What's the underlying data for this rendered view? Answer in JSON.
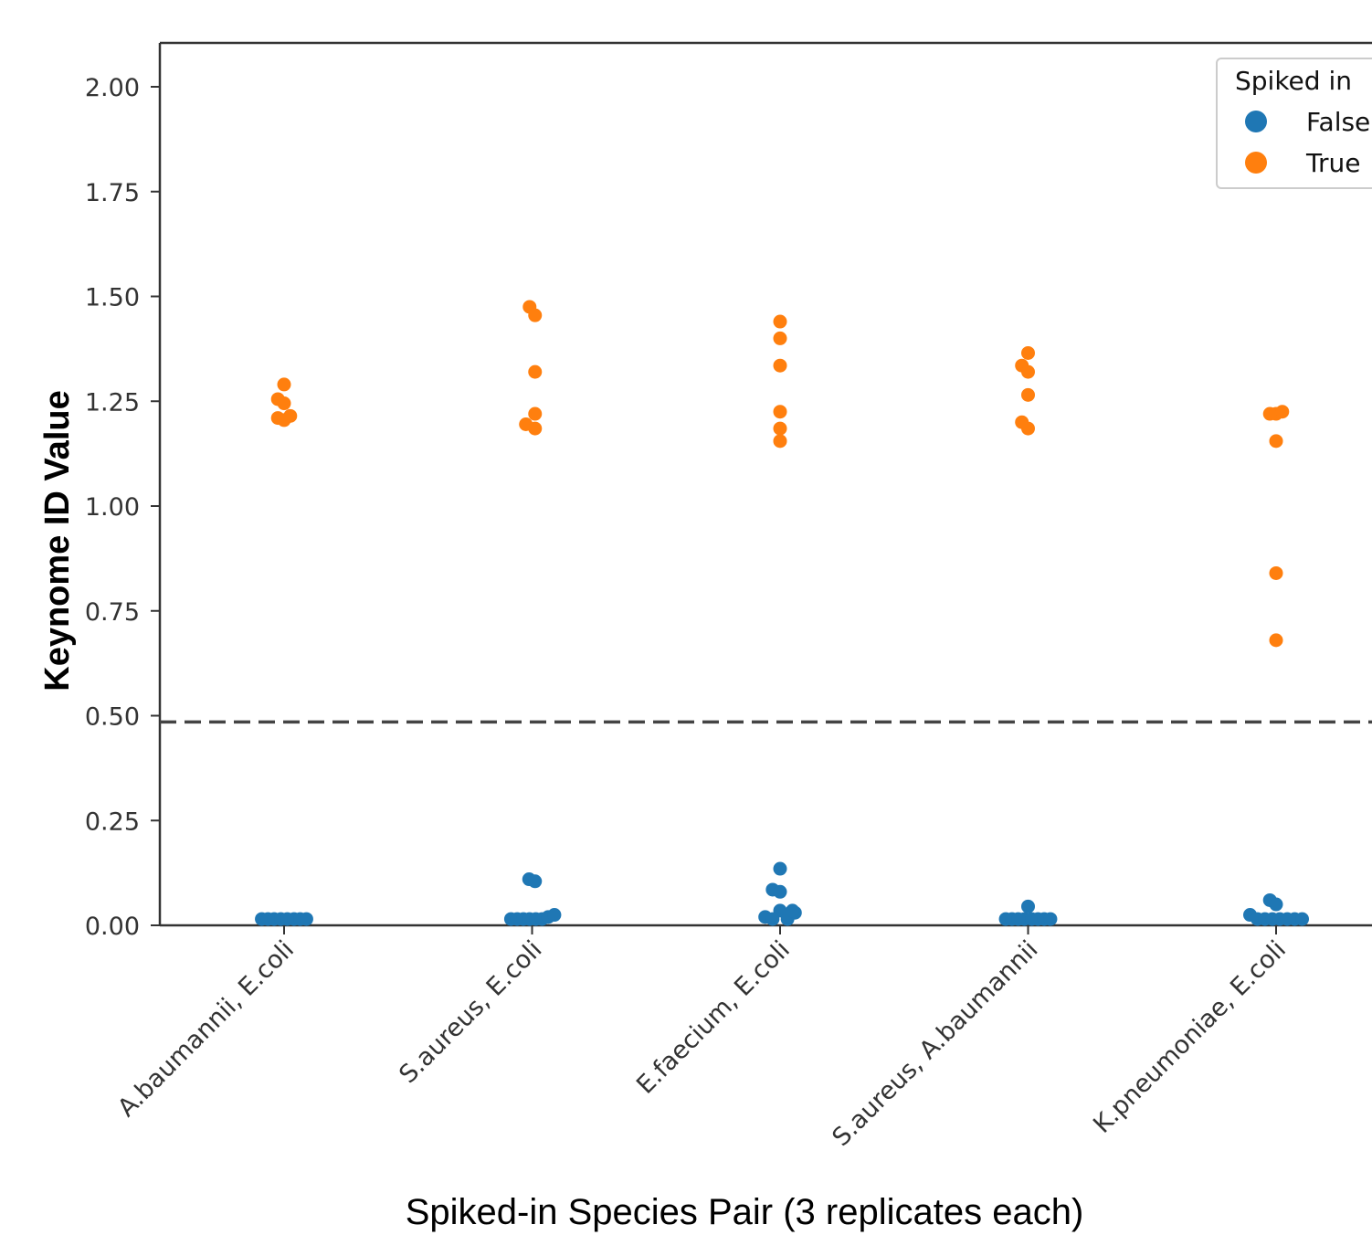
{
  "chart_data": {
    "type": "scatter",
    "subtype": "swarm",
    "title": "",
    "xlabel": "Spiked-in Species Pair (3 replicates each)",
    "ylabel": "Keynome ID Value",
    "categories": [
      "A.baumannii, E.coli",
      "S.aureus, E.coli",
      "E.faecium, E.coli",
      "S.aureus, A.baumannii",
      "K.pneumoniae, E.coli"
    ],
    "ylim": [
      0,
      2.1
    ],
    "yticks": [
      "0.00",
      "0.25",
      "0.50",
      "0.75",
      "1.00",
      "1.25",
      "1.50",
      "1.75",
      "2.00"
    ],
    "threshold": 0.485,
    "threshold_style": "dashed",
    "grid": false,
    "legend": {
      "title": "Spiked in",
      "placement": "top-right",
      "entries": [
        "False",
        "True"
      ]
    },
    "colors": {
      "False": "#1f77b4",
      "True": "#ff7f0e",
      "threshold": "#444444",
      "axes": "#333333"
    },
    "series": [
      {
        "name": "False",
        "points": [
          [
            [
              0.015,
              -0.09
            ],
            [
              0.015,
              -0.065
            ],
            [
              0.015,
              -0.04
            ],
            [
              0.015,
              -0.013
            ],
            [
              0.015,
              0.013
            ],
            [
              0.015,
              0.04
            ],
            [
              0.015,
              0.065
            ],
            [
              0.015,
              0.09
            ]
          ],
          [
            [
              0.11,
              -0.012
            ],
            [
              0.105,
              0.012
            ],
            [
              0.015,
              -0.085
            ],
            [
              0.015,
              -0.06
            ],
            [
              0.015,
              -0.035
            ],
            [
              0.015,
              -0.01
            ],
            [
              0.015,
              0.015
            ],
            [
              0.015,
              0.04
            ],
            [
              0.02,
              0.065
            ],
            [
              0.025,
              0.09
            ]
          ],
          [
            [
              0.135,
              0
            ],
            [
              0.085,
              -0.03
            ],
            [
              0.08,
              0
            ],
            [
              0.035,
              0
            ],
            [
              0.02,
              -0.06
            ],
            [
              0.015,
              -0.03
            ],
            [
              0.015,
              0.03
            ],
            [
              0.03,
              0.06
            ],
            [
              0.035,
              0.05
            ]
          ],
          [
            [
              0.045,
              0
            ],
            [
              0.015,
              -0.09
            ],
            [
              0.015,
              -0.065
            ],
            [
              0.015,
              -0.04
            ],
            [
              0.015,
              -0.015
            ],
            [
              0.015,
              0.015
            ],
            [
              0.015,
              0.04
            ],
            [
              0.015,
              0.065
            ],
            [
              0.015,
              0.09
            ]
          ],
          [
            [
              0.06,
              -0.025
            ],
            [
              0.05,
              0
            ],
            [
              0.025,
              -0.105
            ],
            [
              0.015,
              -0.075
            ],
            [
              0.015,
              -0.045
            ],
            [
              0.015,
              -0.015
            ],
            [
              0.015,
              0.015
            ],
            [
              0.015,
              0.045
            ],
            [
              0.015,
              0.075
            ],
            [
              0.015,
              0.105
            ]
          ]
        ]
      },
      {
        "name": "True",
        "points": [
          [
            [
              1.29,
              0
            ],
            [
              1.255,
              -0.025
            ],
            [
              1.245,
              0
            ],
            [
              1.21,
              -0.025
            ],
            [
              1.205,
              0
            ],
            [
              1.215,
              0.025
            ]
          ],
          [
            [
              1.475,
              -0.01
            ],
            [
              1.455,
              0.012
            ],
            [
              1.32,
              0.012
            ],
            [
              1.22,
              0.012
            ],
            [
              1.195,
              -0.025
            ],
            [
              1.185,
              0.012
            ]
          ],
          [
            [
              1.44,
              0
            ],
            [
              1.4,
              0
            ],
            [
              1.335,
              0
            ],
            [
              1.225,
              0
            ],
            [
              1.185,
              0
            ],
            [
              1.155,
              0
            ]
          ],
          [
            [
              1.365,
              0
            ],
            [
              1.335,
              -0.025
            ],
            [
              1.32,
              0
            ],
            [
              1.265,
              0
            ],
            [
              1.2,
              -0.025
            ],
            [
              1.185,
              0
            ]
          ],
          [
            [
              1.22,
              -0.025
            ],
            [
              1.22,
              0
            ],
            [
              1.225,
              0.025
            ],
            [
              1.155,
              0
            ],
            [
              0.84,
              0
            ],
            [
              0.68,
              0
            ]
          ]
        ]
      }
    ]
  }
}
